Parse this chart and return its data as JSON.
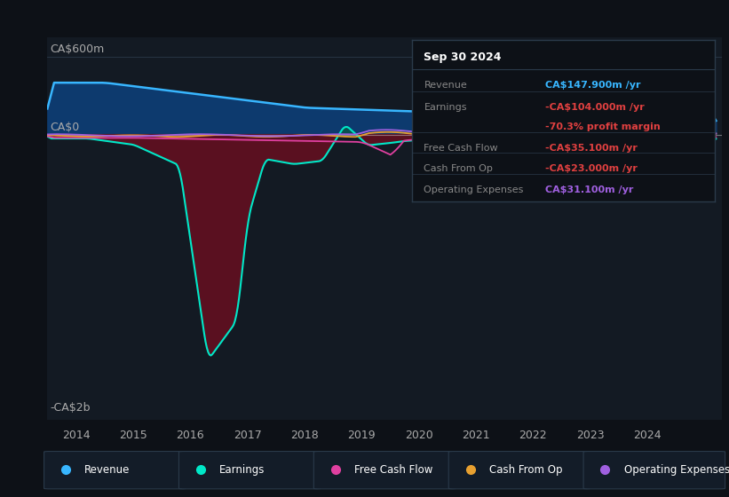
{
  "bg_color": "#0d1117",
  "plot_bg_color": "#131a23",
  "y_label_top": "CA$600m",
  "y_label_mid": "CA$0",
  "y_label_bot": "-CA$2b",
  "x_ticks": [
    2014,
    2015,
    2016,
    2017,
    2018,
    2019,
    2020,
    2021,
    2022,
    2023,
    2024
  ],
  "ylim": [
    -2200,
    750
  ],
  "xlim": [
    2013.5,
    2025.3
  ],
  "series_colors": {
    "revenue": "#38b6ff",
    "earnings": "#00e8c8",
    "free_cash_flow": "#e040a0",
    "cash_from_op": "#e8a030",
    "op_expenses": "#a060e0"
  },
  "fill_colors": {
    "revenue_pos": "#0d3a6e",
    "earnings_neg": "#5a1020",
    "earnings_pos": "#0a5050"
  },
  "info_box": {
    "title": "Sep 30 2024",
    "rows": [
      {
        "label": "Revenue",
        "value": "CA$147.900m /yr",
        "color": "#38b6ff"
      },
      {
        "label": "Earnings",
        "value": "-CA$104.000m /yr",
        "color": "#e04040"
      },
      {
        "label": "",
        "value": "-70.3% profit margin",
        "color": "#e04040"
      },
      {
        "label": "Free Cash Flow",
        "value": "-CA$35.100m /yr",
        "color": "#e04040"
      },
      {
        "label": "Cash From Op",
        "value": "-CA$23.000m /yr",
        "color": "#e04040"
      },
      {
        "label": "Operating Expenses",
        "value": "CA$31.100m /yr",
        "color": "#a060e0"
      }
    ]
  },
  "legend": [
    {
      "label": "Revenue",
      "color": "#38b6ff"
    },
    {
      "label": "Earnings",
      "color": "#00e8c8"
    },
    {
      "label": "Free Cash Flow",
      "color": "#e040a0"
    },
    {
      "label": "Cash From Op",
      "color": "#e8a030"
    },
    {
      "label": "Operating Expenses",
      "color": "#a060e0"
    }
  ]
}
